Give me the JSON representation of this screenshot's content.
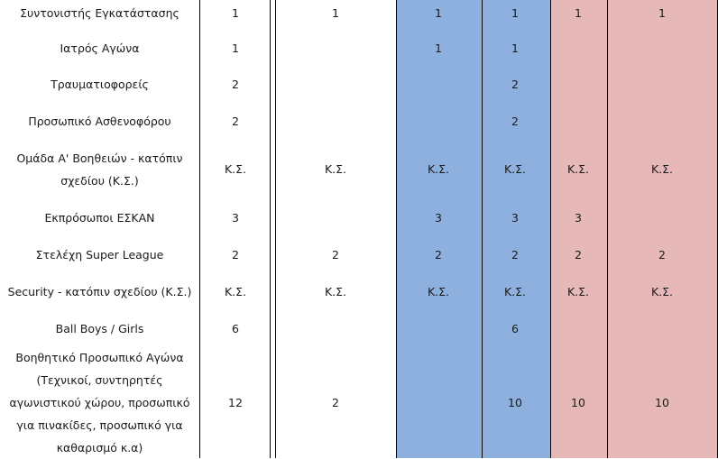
{
  "colors": {
    "blue_column": "#8db0df",
    "pink_column": "#e6b9b8",
    "grid_line": "#000000"
  },
  "rows": [
    {
      "role": "Συντονιστής Εγκατάστασης",
      "values": [
        "1",
        "1",
        "1",
        "1",
        "1",
        "1"
      ]
    },
    {
      "role": "Ιατρός Αγώνα",
      "values": [
        "1",
        "",
        "1",
        "1",
        "",
        ""
      ]
    },
    {
      "role": "Τραυματιοφορείς",
      "values": [
        "2",
        "",
        "",
        "2",
        "",
        ""
      ]
    },
    {
      "role": "Προσωπικό Ασθενοφόρου",
      "values": [
        "2",
        "",
        "",
        "2",
        "",
        ""
      ]
    },
    {
      "role": "Ομάδα Α' Βοηθειών - κατόπιν σχεδίου (Κ.Σ.)",
      "values": [
        "Κ.Σ.",
        "Κ.Σ.",
        "Κ.Σ.",
        "Κ.Σ.",
        "Κ.Σ.",
        "Κ.Σ."
      ]
    },
    {
      "role": "Εκπρόσωποι ΕΣΚΑΝ",
      "values": [
        "3",
        "",
        "3",
        "3",
        "3",
        ""
      ]
    },
    {
      "role": "Στελέχη Super League",
      "values": [
        "2",
        "2",
        "2",
        "2",
        "2",
        "2"
      ]
    },
    {
      "role": "Security - κατόπιν σχεδίου (Κ.Σ.)",
      "values": [
        "Κ.Σ.",
        "Κ.Σ.",
        "Κ.Σ.",
        "Κ.Σ.",
        "Κ.Σ.",
        "Κ.Σ."
      ]
    },
    {
      "role": "Ball Boys / Girls",
      "values": [
        "6",
        "",
        "",
        "6",
        "",
        ""
      ]
    },
    {
      "role": "Βοηθητικό Προσωπικό Αγώνα (Τεχνικοί, συντηρητές αγωνιστικού χώρου, προσωπικό για πινακίδες, προσωπικό για καθαρισμό κ.α)",
      "values": [
        "12",
        "2",
        "",
        "10",
        "10",
        "10"
      ]
    }
  ]
}
